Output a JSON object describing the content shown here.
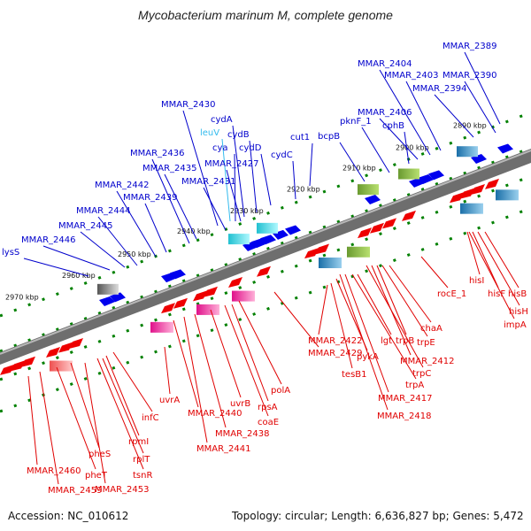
{
  "title": "Mycobacterium marinum M, complete genome",
  "accession": "Accession: NC_010612",
  "topology": "Topology: circular; Length: 6,636,827 bp; Genes: 5,472",
  "colors": {
    "backbone": "#808080",
    "forward_label": "#0000cc",
    "reverse_label": "#e00000",
    "forward_gene": "#0000ee",
    "reverse_gene": "#ee0000",
    "tick_green": "#008000",
    "leuV_label": "#33bbee"
  },
  "scale_labels": [
    "2890 kbp",
    "2900 kbp",
    "2910 kbp",
    "2920 kbp",
    "2930 kbp",
    "2940 kbp",
    "2950 kbp",
    "2960 kbp",
    "2970 kbp"
  ],
  "forward_labels": [
    "MMAR_2389",
    "MMAR_2390",
    "MMAR_2394",
    "MMAR_2403",
    "MMAR_2404",
    "MMAR_2406",
    "cphB",
    "pknF_1",
    "bcpB",
    "cut1",
    "cydC",
    "cydD",
    "cydB",
    "cydA",
    "leuV",
    "cya",
    "MMAR_2427",
    "MMAR_2430",
    "MMAR_2431",
    "MMAR_2435",
    "MMAR_2436",
    "MMAR_2439",
    "MMAR_2442",
    "MMAR_2444",
    "MMAR_2445",
    "MMAR_2446",
    "lysS"
  ],
  "reverse_labels": [
    "hisB",
    "hisH",
    "hisF",
    "impA",
    "hisI",
    "rocE_1",
    "chaA",
    "trpE",
    "trpB",
    "MMAR_2412",
    "trpC",
    "lgt",
    "trpA",
    "MMAR_2417",
    "MMAR_2418",
    "pykA",
    "tesB1",
    "MMAR_2422",
    "MMAR_2429",
    "polA",
    "rpsA",
    "coaE",
    "uvrB",
    "MMAR_2438",
    "MMAR_2441",
    "MMAR_2440",
    "uvrA",
    "infC",
    "rpmI",
    "rplT",
    "tsnR",
    "MMAR_2453",
    "pheS",
    "pheT",
    "MMAR_2459",
    "MMAR_2460"
  ]
}
